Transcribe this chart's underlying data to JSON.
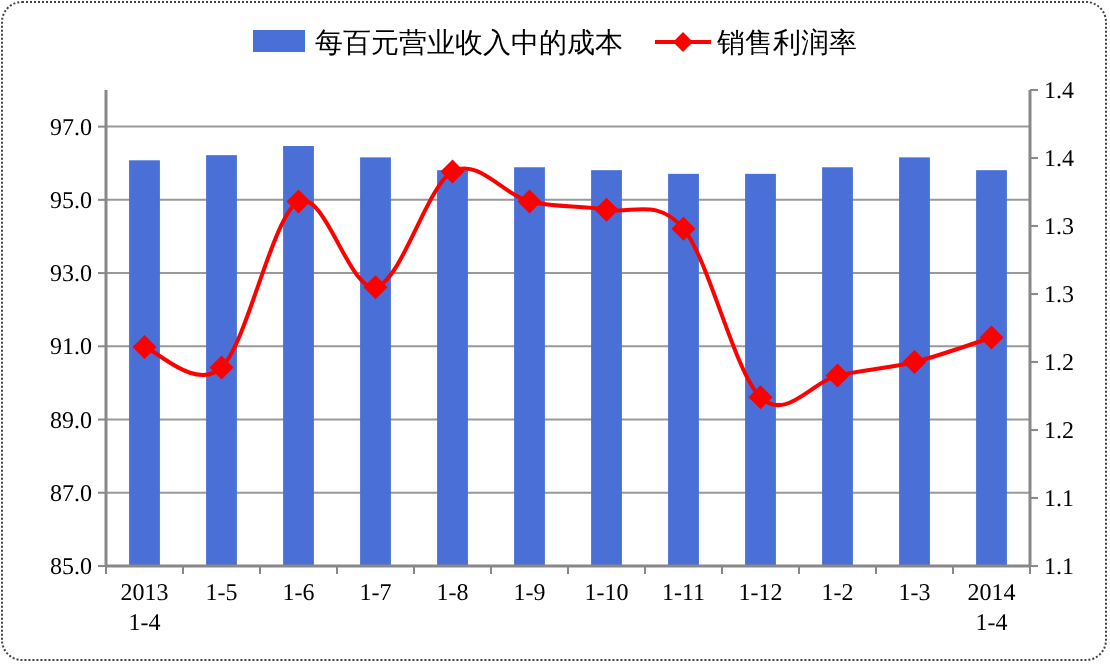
{
  "chart_data": {
    "type": "bar",
    "categories": [
      "2013 1-4",
      "1-5",
      "1-6",
      "1-7",
      "1-8",
      "1-9",
      "1-10",
      "1-11",
      "1-12",
      "1-2",
      "1-3",
      "2014 1-4"
    ],
    "series": [
      {
        "name": "每百元营业收入中的成本",
        "color": "#4a6fd6",
        "values": [
          96.08,
          96.22,
          96.47,
          96.16,
          95.81,
          95.89,
          95.81,
          95.71,
          95.71,
          95.89,
          96.16,
          95.81
        ]
      },
      {
        "name": "销售利润率",
        "type": "line",
        "axis": "y2",
        "color": "#ff0000",
        "marker": "diamond",
        "values": [
          1.261,
          1.246,
          1.368,
          1.305,
          1.39,
          1.368,
          1.362,
          1.348,
          1.224,
          1.24,
          1.25,
          1.268
        ]
      }
    ],
    "ylim": [
      85,
      98
    ],
    "yticks": [
      {
        "value": 85,
        "label": "85.0"
      },
      {
        "value": 87,
        "label": "87.0"
      },
      {
        "value": 89,
        "label": "89.0"
      },
      {
        "value": 91,
        "label": "91.0"
      },
      {
        "value": 93,
        "label": "93.0"
      },
      {
        "value": 95,
        "label": "95.0"
      },
      {
        "value": 97,
        "label": "97.0"
      }
    ],
    "y2lim": [
      1.1,
      1.45
    ],
    "y2ticks": [
      {
        "value": 1.1,
        "label": "1.1"
      },
      {
        "value": 1.15,
        "label": "1.1"
      },
      {
        "value": 1.2,
        "label": "1.2"
      },
      {
        "value": 1.25,
        "label": "1.2"
      },
      {
        "value": 1.3,
        "label": "1.3"
      },
      {
        "value": 1.35,
        "label": "1.3"
      },
      {
        "value": 1.4,
        "label": "1.4"
      },
      {
        "value": 1.45,
        "label": "1.4"
      }
    ],
    "grid": "y",
    "legend": "top"
  }
}
